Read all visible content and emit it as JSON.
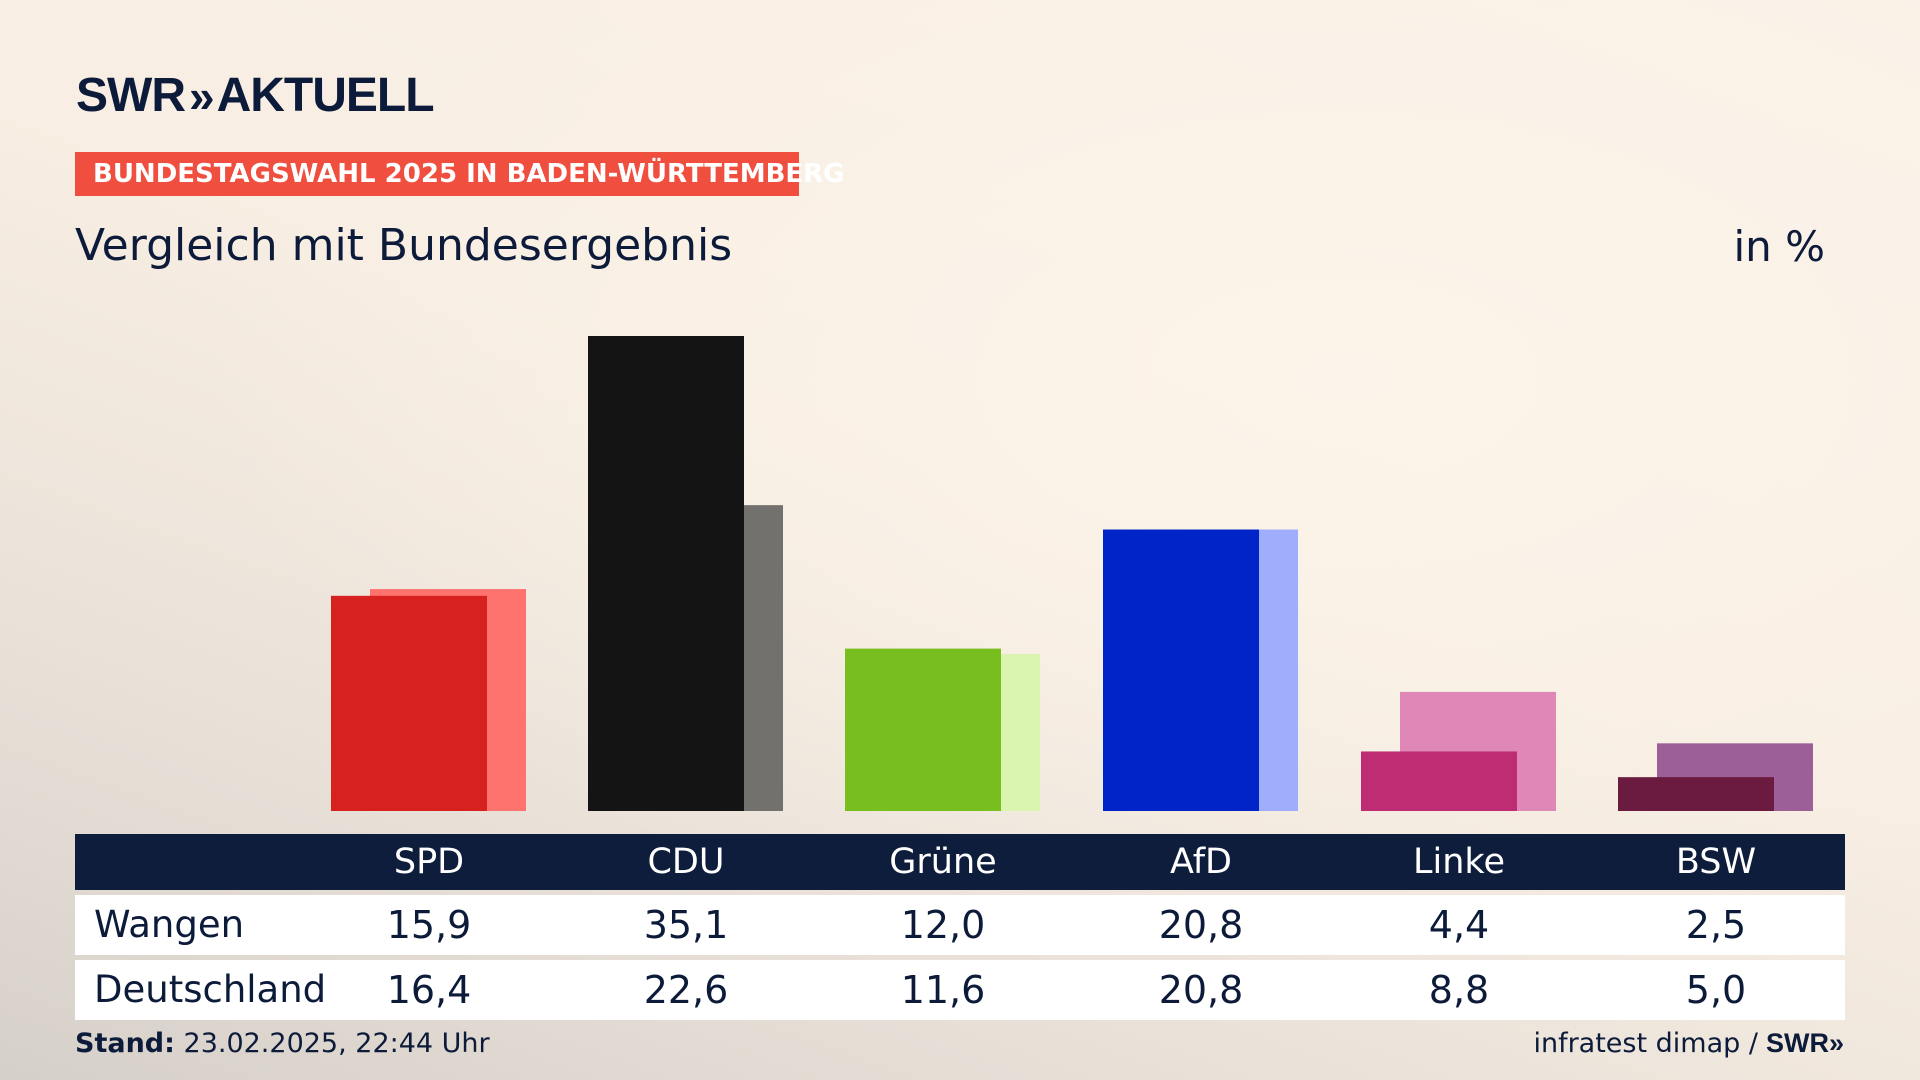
{
  "header": {
    "brand": "SWR",
    "brand_chevrons": "»",
    "product": "AKTUELL",
    "badge": "BUNDESTAGSWAHL 2025 IN BADEN-WÜRTTEMBERG",
    "subtitle": "Vergleich mit Bundesergebnis",
    "unit": "in %"
  },
  "chart_data": {
    "type": "bar",
    "title": "Vergleich mit Bundesergebnis",
    "ylabel": "in %",
    "categories": [
      "SPD",
      "CDU",
      "Grüne",
      "AfD",
      "Linke",
      "BSW"
    ],
    "series": [
      {
        "name": "Wangen",
        "values": [
          15.9,
          35.1,
          12.0,
          20.8,
          4.4,
          2.5
        ],
        "colors": [
          "#d7211f",
          "#141414",
          "#78be1e",
          "#0024c8",
          "#be2d73",
          "#6b1a40"
        ]
      },
      {
        "name": "Deutschland",
        "values": [
          16.4,
          22.6,
          11.6,
          20.8,
          8.8,
          5.0
        ],
        "colors": [
          "#ff736e",
          "#73716e",
          "#d9f5b0",
          "#9fadfd",
          "#df87b6",
          "#9c5f97"
        ]
      }
    ],
    "ylim": [
      0,
      35.1
    ],
    "grid": false,
    "legend": "table-below"
  },
  "table": {
    "headers": [
      "SPD",
      "CDU",
      "Grüne",
      "AfD",
      "Linke",
      "BSW"
    ],
    "rows": [
      {
        "label": "Wangen",
        "values": [
          "15,9",
          "35,1",
          "12,0",
          "20,8",
          "4,4",
          "2,5"
        ]
      },
      {
        "label": "Deutschland",
        "values": [
          "16,4",
          "22,6",
          "11,6",
          "20,8",
          "8,8",
          "5,0"
        ]
      }
    ]
  },
  "footer": {
    "stand_label": "Stand:",
    "stand_value": "23.02.2025, 22:44 Uhr",
    "source": "infratest dimap /",
    "source_brand": "SWR",
    "source_brand_chevrons": "»"
  }
}
